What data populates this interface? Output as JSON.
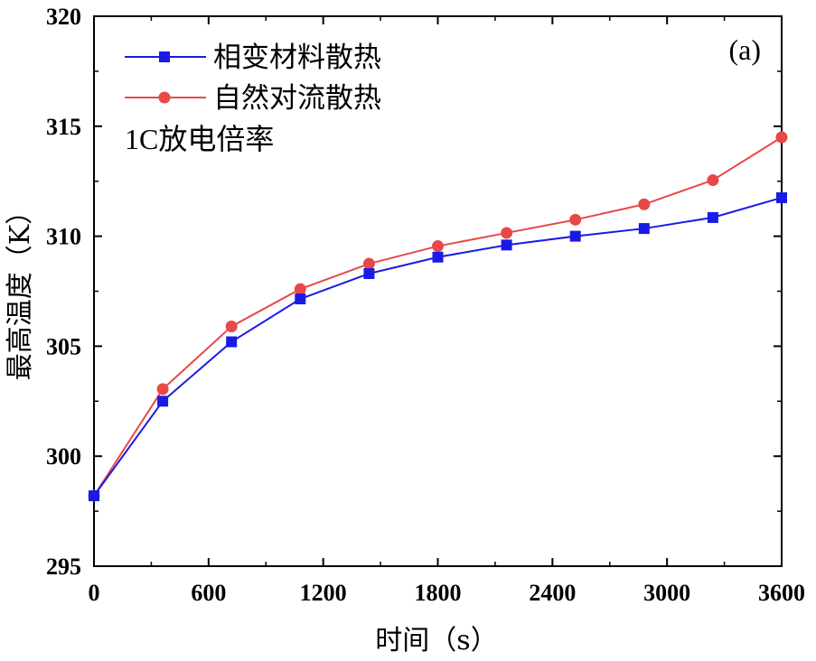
{
  "chart_data": {
    "type": "line",
    "title": "",
    "panel_label": "(a)",
    "annotation": "1C放电倍率",
    "xlabel": "时间（s）",
    "ylabel": "最高温度（K）",
    "xlim": [
      0,
      3600
    ],
    "ylim": [
      295,
      320
    ],
    "xticks": [
      0,
      600,
      1200,
      1800,
      2400,
      3000,
      3600
    ],
    "yticks": [
      295,
      300,
      305,
      310,
      315,
      320
    ],
    "grid": false,
    "legend_position": "top-left",
    "series": [
      {
        "name": "相变材料散热",
        "color": "#1a1ae6",
        "marker": "square",
        "x": [
          0,
          360,
          720,
          1080,
          1440,
          1800,
          2160,
          2520,
          2880,
          3240,
          3600
        ],
        "y": [
          298.2,
          302.5,
          305.2,
          307.15,
          308.3,
          309.05,
          309.6,
          310.0,
          310.35,
          310.85,
          311.75
        ]
      },
      {
        "name": "自然对流散热",
        "color": "#e84848",
        "marker": "circle",
        "x": [
          0,
          360,
          720,
          1080,
          1440,
          1800,
          2160,
          2520,
          2880,
          3240,
          3600
        ],
        "y": [
          298.2,
          303.05,
          305.9,
          307.6,
          308.75,
          309.55,
          310.15,
          310.75,
          311.45,
          312.55,
          314.5
        ]
      }
    ]
  }
}
